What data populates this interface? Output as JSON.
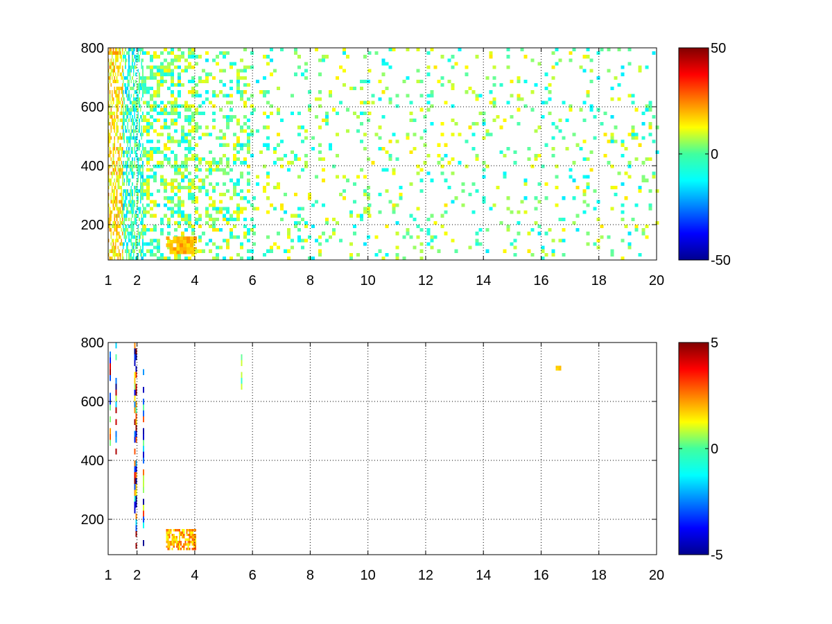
{
  "chart_data": [
    {
      "type": "heatmap",
      "x_ticks": [
        "1",
        "2",
        "4",
        "6",
        "8",
        "10",
        "12",
        "14",
        "16",
        "18",
        "20"
      ],
      "x_tick_values": [
        1,
        2,
        4,
        6,
        8,
        10,
        12,
        14,
        16,
        18,
        20
      ],
      "y_ticks": [
        "200",
        "400",
        "600",
        "800"
      ],
      "y_tick_values": [
        200,
        400,
        600,
        800
      ],
      "xlim": [
        1,
        20
      ],
      "ylim": [
        80,
        800
      ],
      "grid": true,
      "colormap": "jet",
      "colorbar": {
        "range": [
          -50,
          50
        ],
        "ticks": [
          "50",
          "0",
          "-50"
        ],
        "tick_values": [
          50,
          0,
          -50
        ],
        "placement": "right"
      },
      "sparse_fill": "dense scattered cells for x from 1 to 6, sparser scattered cells from 6 to 20; values mostly between -10 and 20",
      "regions": [
        {
          "x": [
            1,
            1.5
          ],
          "y": [
            80,
            800
          ],
          "values": [
            5,
            25
          ],
          "density": 0.55
        },
        {
          "x": [
            1.5,
            2.2
          ],
          "y": [
            80,
            800
          ],
          "values": [
            -20,
            5
          ],
          "density": 0.6
        },
        {
          "x": [
            2.2,
            4
          ],
          "y": [
            80,
            800
          ],
          "values": [
            -15,
            15
          ],
          "density": 0.45
        },
        {
          "x": [
            3,
            4
          ],
          "y": [
            100,
            160
          ],
          "values": [
            15,
            25
          ],
          "density": 0.85
        },
        {
          "x": [
            4,
            6
          ],
          "y": [
            80,
            800
          ],
          "values": [
            -15,
            15
          ],
          "density": 0.3
        },
        {
          "x": [
            6,
            10
          ],
          "y": [
            80,
            800
          ],
          "values": [
            -15,
            15
          ],
          "density": 0.13
        },
        {
          "x": [
            10,
            20
          ],
          "y": [
            80,
            800
          ],
          "values": [
            -15,
            15
          ],
          "density": 0.1
        }
      ]
    },
    {
      "type": "heatmap",
      "x_ticks": [
        "1",
        "2",
        "4",
        "6",
        "8",
        "10",
        "12",
        "14",
        "16",
        "18",
        "20"
      ],
      "x_tick_values": [
        1,
        2,
        4,
        6,
        8,
        10,
        12,
        14,
        16,
        18,
        20
      ],
      "y_ticks": [
        "200",
        "400",
        "600",
        "800"
      ],
      "y_tick_values": [
        200,
        400,
        600,
        800
      ],
      "xlim": [
        1,
        20
      ],
      "ylim": [
        80,
        800
      ],
      "grid": true,
      "colormap": "jet",
      "colorbar": {
        "range": [
          -5,
          5
        ],
        "ticks": [
          "5",
          "0",
          "-5"
        ],
        "tick_values": [
          5,
          0,
          -5
        ],
        "placement": "right"
      },
      "sparse_fill": "mostly empty; thin vertical streaks near x = 1.2, 1.9 and 2.2, a faint yellow-green arc near y = 100-160 between x = 3 and 4, small marks near x = 5.6 and x = 16.6",
      "streaks": [
        {
          "x": 1.25,
          "y": [
            420,
            800
          ],
          "values": [
            -5,
            5
          ]
        },
        {
          "x": 1.05,
          "y": [
            450,
            760
          ],
          "values": [
            -5,
            5
          ]
        },
        {
          "x": 1.9,
          "y": [
            200,
            800
          ],
          "values": [
            -5,
            5
          ]
        },
        {
          "x": 1.95,
          "y": [
            100,
            780
          ],
          "values": [
            -5,
            5
          ]
        },
        {
          "x": 2.2,
          "y": [
            90,
            700
          ],
          "values": [
            -5,
            5
          ]
        },
        {
          "x": 5.6,
          "y": [
            620,
            770
          ],
          "values": [
            -1,
            1
          ]
        }
      ],
      "blobs": [
        {
          "x": [
            3.0,
            4.0
          ],
          "y": [
            95,
            160
          ],
          "values": [
            1,
            3
          ]
        },
        {
          "x": [
            16.5,
            16.7
          ],
          "y": [
            705,
            715
          ],
          "values": [
            1.5,
            2
          ]
        }
      ]
    }
  ]
}
